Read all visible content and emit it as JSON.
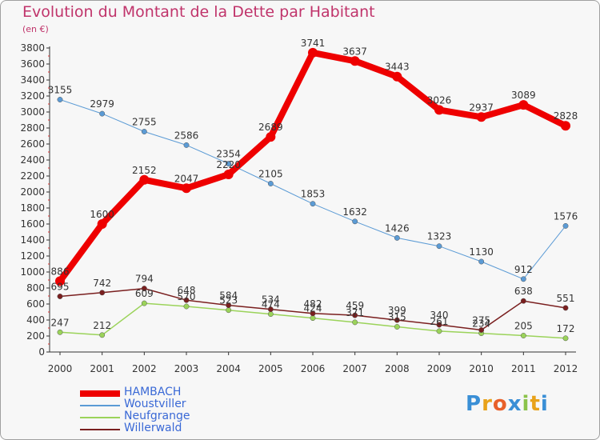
{
  "chart_data": {
    "type": "line",
    "title": "Evolution du Montant de la Dette par Habitant",
    "subtitle": "(en €)",
    "x": [
      "2000",
      "2001",
      "2002",
      "2003",
      "2004",
      "2005",
      "2006",
      "2007",
      "2008",
      "2009",
      "2010",
      "2011",
      "2012"
    ],
    "ylim": [
      0,
      3800
    ],
    "yticks": [
      0,
      200,
      400,
      600,
      800,
      1000,
      1200,
      1400,
      1600,
      1800,
      2000,
      2200,
      2400,
      2600,
      2800,
      3000,
      3200,
      3400,
      3600,
      3800
    ],
    "grid": false,
    "legend_position": "bottom-left",
    "series": [
      {
        "name": "HAMBACH",
        "color": "#ee0000",
        "values": [
          886,
          1600,
          2152,
          2047,
          2220,
          2689,
          3741,
          3637,
          3443,
          3026,
          2937,
          3089,
          2828
        ]
      },
      {
        "name": "Woustviller",
        "color": "#5b9bd5",
        "values": [
          3155,
          2979,
          2755,
          2586,
          2354,
          2105,
          1853,
          1632,
          1426,
          1323,
          1130,
          912,
          1576
        ]
      },
      {
        "name": "Neufgrange",
        "color": "#9bd35a",
        "values": [
          247,
          212,
          609,
          570,
          523,
          474,
          424,
          371,
          315,
          261,
          234,
          205,
          172
        ]
      },
      {
        "name": "Willerwald",
        "color": "#7a1f1f",
        "values": [
          695,
          742,
          794,
          648,
          584,
          534,
          482,
          459,
          399,
          340,
          275,
          638,
          551
        ]
      }
    ]
  },
  "logo": {
    "text": "Proxiti"
  }
}
